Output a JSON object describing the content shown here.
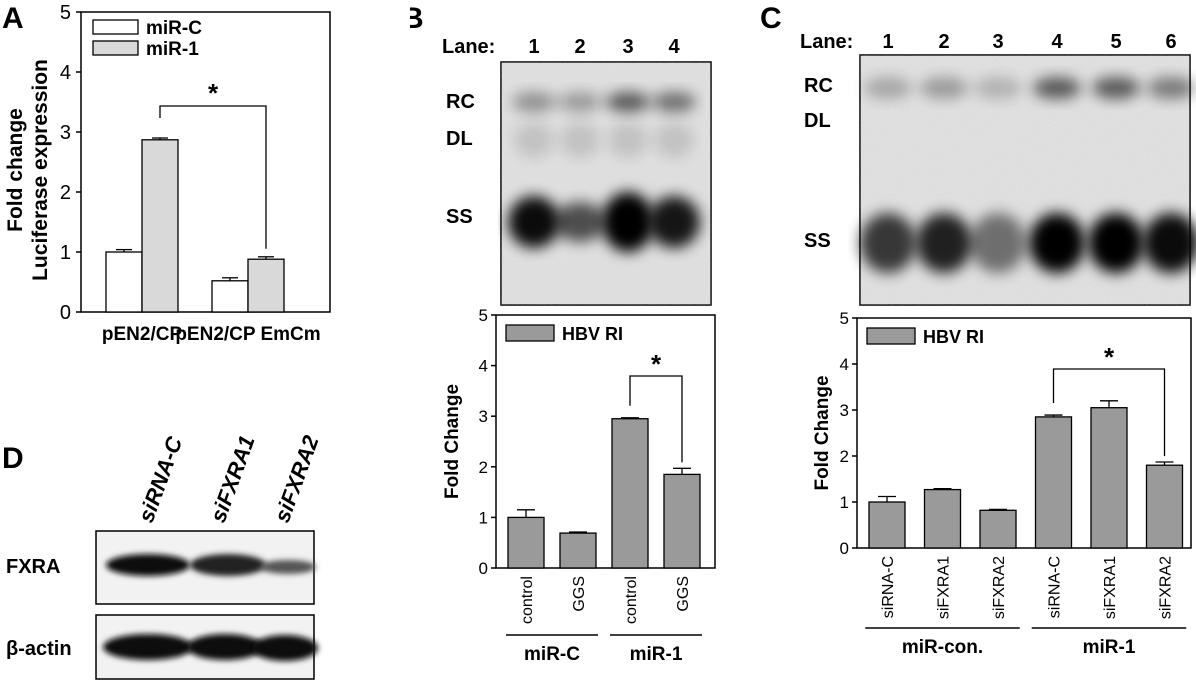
{
  "panels": {
    "A": {
      "letter": "A",
      "chart_data": {
        "type": "bar",
        "categories": [
          "pEN2/CP",
          "pEN2/CP EmCm"
        ],
        "series": [
          {
            "name": "miR-C",
            "values": [
              1.0,
              0.52
            ],
            "errors": [
              0.04,
              0.05
            ]
          },
          {
            "name": "miR-1",
            "values": [
              2.87,
              0.88
            ],
            "errors": [
              0.03,
              0.04
            ]
          }
        ],
        "ylabel_lines": [
          "Fold change",
          "Luciferase expression"
        ],
        "yticks": [
          0,
          1,
          2,
          3,
          4,
          5
        ],
        "ylim": [
          0,
          5
        ],
        "legend": "top-left",
        "significance": "*"
      }
    },
    "B": {
      "letter": "B",
      "lane_label": "Lane:",
      "lanes": [
        "1",
        "2",
        "3",
        "4"
      ],
      "bands": [
        "RC",
        "DL",
        "SS"
      ],
      "chart_data": {
        "type": "bar",
        "categories": [
          "control",
          "GGS",
          "control",
          "GGS"
        ],
        "groups": [
          {
            "label": "miR-C",
            "span": [
              0,
              1
            ]
          },
          {
            "label": "miR-1",
            "span": [
              2,
              3
            ]
          }
        ],
        "series": [
          {
            "name": "HBV RI",
            "values": [
              1.0,
              0.69,
              2.95,
              1.85
            ],
            "errors": [
              0.15,
              0.02,
              0.02,
              0.12
            ]
          }
        ],
        "ylabel": "Fold Change",
        "yticks": [
          0,
          1,
          2,
          3,
          4,
          5
        ],
        "ylim": [
          0,
          5
        ],
        "legend": "top-left",
        "significance": "*"
      }
    },
    "C": {
      "letter": "C",
      "lane_label": "Lane:",
      "lanes": [
        "1",
        "2",
        "3",
        "4",
        "5",
        "6"
      ],
      "bands": [
        "RC",
        "DL",
        "SS"
      ],
      "chart_data": {
        "type": "bar",
        "categories": [
          "siRNA-C",
          "siFXRA1",
          "siFXRA2",
          "siRNA-C",
          "siFXRA1",
          "siFXRA2"
        ],
        "groups": [
          {
            "label": "miR-con.",
            "span": [
              0,
              2
            ]
          },
          {
            "label": "miR-1",
            "span": [
              3,
              5
            ]
          }
        ],
        "series": [
          {
            "name": "HBV RI",
            "values": [
              1.0,
              1.27,
              0.82,
              2.85,
              3.05,
              1.8
            ],
            "errors": [
              0.12,
              0.02,
              0.02,
              0.04,
              0.15,
              0.07
            ]
          }
        ],
        "ylabel": "Fold Change",
        "yticks": [
          0,
          1,
          2,
          3,
          4,
          5
        ],
        "ylim": [
          0,
          5
        ],
        "legend": "top-left",
        "significance": "*"
      }
    },
    "D": {
      "letter": "D",
      "lanes": [
        "siRNA-C",
        "siFXRA1",
        "siFXRA2"
      ],
      "rows": [
        "FXRA",
        "β-actin"
      ]
    }
  },
  "colors": {
    "open_bar": "#ffffff",
    "light_gray_bar": "#d9d9d9",
    "gray_bar": "#9a9a9a"
  }
}
